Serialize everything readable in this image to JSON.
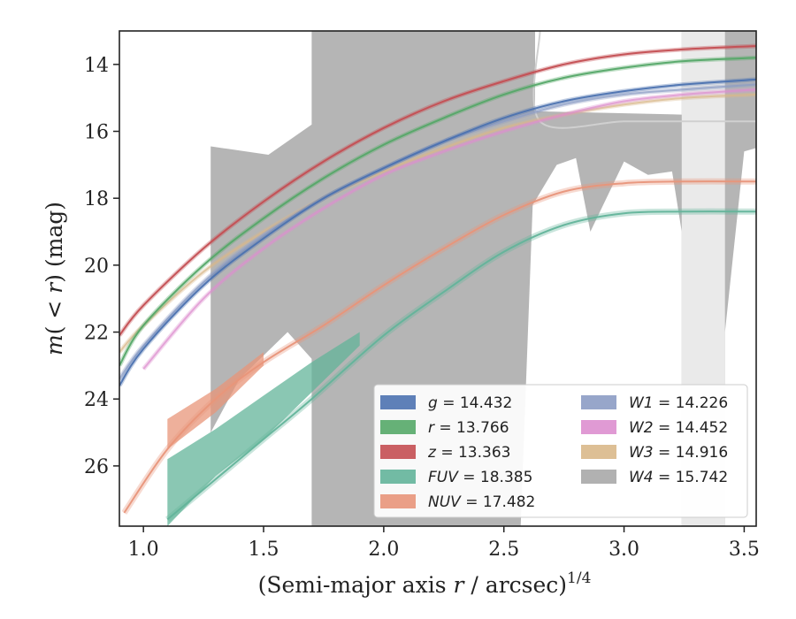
{
  "chart_data": {
    "type": "line",
    "title": "",
    "xlabel": "(Semi-major axis r / arcsec)",
    "xlabel_parts": {
      "pre": "(Semi-major axis ",
      "var": "r",
      "post": " / arcsec)",
      "sup": "1/4"
    },
    "ylabel": "m(< r) (mag)",
    "ylabel_parts": {
      "m": "m",
      "open": "( < ",
      "r": "r",
      "close": ") (mag)"
    },
    "xlim": [
      0.9,
      3.55
    ],
    "ylim": [
      27.8,
      13.0
    ],
    "y_inverted": true,
    "x_ticks": [
      1.0,
      1.5,
      2.0,
      2.5,
      3.0,
      3.5
    ],
    "x_tick_labels": [
      "1.0",
      "1.5",
      "2.0",
      "2.5",
      "3.0",
      "3.5"
    ],
    "y_ticks": [
      14,
      16,
      18,
      20,
      22,
      24,
      26
    ],
    "y_tick_labels": [
      "14",
      "16",
      "18",
      "20",
      "22",
      "24",
      "26"
    ],
    "grid": false,
    "legend_position": "bottom-right",
    "legend_columns": 2,
    "series": [
      {
        "name": "g",
        "value": "14.432",
        "color": "#4c72b0",
        "x": [
          0.9,
          1.0,
          1.25,
          1.5,
          1.75,
          2.0,
          2.25,
          2.5,
          2.75,
          3.0,
          3.25,
          3.55
        ],
        "y": [
          23.6,
          22.5,
          20.6,
          19.2,
          18.0,
          17.1,
          16.3,
          15.6,
          15.1,
          14.8,
          14.6,
          14.45
        ]
      },
      {
        "name": "r",
        "value": "13.766",
        "color": "#55a868",
        "x": [
          0.9,
          1.0,
          1.25,
          1.5,
          1.75,
          2.0,
          2.25,
          2.5,
          2.75,
          3.0,
          3.25,
          3.55
        ],
        "y": [
          23.0,
          21.8,
          20.0,
          18.6,
          17.4,
          16.4,
          15.6,
          14.9,
          14.4,
          14.1,
          13.9,
          13.8
        ]
      },
      {
        "name": "z",
        "value": "13.363",
        "color": "#c44e52",
        "x": [
          0.9,
          1.0,
          1.25,
          1.5,
          1.75,
          2.0,
          2.25,
          2.5,
          2.75,
          3.0,
          3.25,
          3.55
        ],
        "y": [
          22.1,
          21.2,
          19.5,
          18.1,
          16.9,
          15.9,
          15.1,
          14.5,
          14.0,
          13.7,
          13.55,
          13.45
        ]
      },
      {
        "name": "FUV",
        "value": "18.385",
        "color": "#63b49a",
        "x": [
          1.1,
          1.3,
          1.5,
          1.7,
          2.0,
          2.25,
          2.5,
          2.75,
          3.0,
          3.25,
          3.55
        ],
        "y": [
          27.6,
          26.4,
          25.2,
          24.0,
          22.1,
          20.8,
          19.6,
          18.8,
          18.45,
          18.4,
          18.4
        ]
      },
      {
        "name": "NUV",
        "value": "17.482",
        "color": "#e8957a",
        "x": [
          0.92,
          1.1,
          1.3,
          1.5,
          1.75,
          2.0,
          2.25,
          2.5,
          2.75,
          3.0,
          3.25,
          3.55
        ],
        "y": [
          27.4,
          25.5,
          24.0,
          22.9,
          21.8,
          20.6,
          19.5,
          18.5,
          17.8,
          17.55,
          17.5,
          17.5
        ]
      },
      {
        "name": "W1",
        "value": "14.226",
        "color": "#8c9cc4",
        "x": [
          0.9,
          1.0,
          1.25,
          1.5,
          1.75,
          2.0,
          2.25,
          2.5,
          2.75,
          3.0,
          3.25,
          3.55
        ],
        "y": [
          23.4,
          22.4,
          20.5,
          19.1,
          18.0,
          17.1,
          16.3,
          15.7,
          15.2,
          14.9,
          14.75,
          14.6
        ]
      },
      {
        "name": "W2",
        "value": "14.452",
        "color": "#dd8fcf",
        "x": [
          1.0,
          1.25,
          1.5,
          1.75,
          2.0,
          2.25,
          2.5,
          2.75,
          3.0,
          3.25,
          3.55
        ],
        "y": [
          23.1,
          21.0,
          19.5,
          18.3,
          17.3,
          16.6,
          16.0,
          15.5,
          15.1,
          14.9,
          14.75
        ]
      },
      {
        "name": "W3",
        "value": "14.916",
        "color": "#d9b88a",
        "x": [
          0.9,
          1.0,
          1.25,
          1.5,
          1.75,
          2.0,
          2.25,
          2.5,
          2.75,
          3.0,
          3.25,
          3.55
        ],
        "y": [
          22.6,
          21.8,
          20.2,
          19.0,
          18.0,
          17.2,
          16.5,
          15.9,
          15.5,
          15.2,
          15.0,
          14.9
        ]
      },
      {
        "name": "W4",
        "value": "15.742",
        "color": "#a8a8a8",
        "x": [
          1.3,
          1.3,
          1.5,
          1.55,
          1.7,
          1.7,
          2.0,
          2.25,
          2.5,
          2.65,
          2.65,
          3.0,
          3.25,
          3.55
        ],
        "y": [
          16.4,
          25.0,
          22.5,
          16.7,
          15.8,
          13.0,
          13.0,
          13.0,
          13.0,
          13.0,
          15.7,
          15.7,
          15.7,
          15.7
        ]
      }
    ],
    "w4_band": {
      "upper": {
        "x": [
          1.28,
          1.52,
          1.7,
          1.7,
          2.63,
          2.63,
          3.24,
          3.24,
          3.55
        ],
        "y": [
          16.45,
          16.7,
          15.8,
          13.0,
          13.0,
          15.4,
          15.5,
          13.0,
          13.0
        ]
      },
      "lower": {
        "x": [
          1.28,
          1.4,
          1.6,
          1.7,
          1.7,
          1.72,
          2.57,
          2.62,
          2.72,
          2.8,
          2.86,
          3.0,
          3.1,
          3.2,
          3.24,
          3.24,
          3.42,
          3.42,
          3.5,
          3.55
        ],
        "y": [
          25.0,
          23.4,
          22.0,
          22.8,
          27.8,
          27.8,
          27.8,
          18.2,
          17.0,
          16.8,
          19.0,
          16.9,
          17.3,
          17.2,
          19.0,
          27.8,
          27.8,
          22.0,
          16.6,
          16.5
        ]
      }
    }
  },
  "legend": {
    "left": [
      {
        "label": "g",
        "value": "14.432",
        "color": "#4c72b0"
      },
      {
        "label": "r",
        "value": "13.766",
        "color": "#55a868"
      },
      {
        "label": "z",
        "value": "13.363",
        "color": "#c44e52"
      },
      {
        "label": "FUV",
        "value": "18.385",
        "color": "#63b49a"
      },
      {
        "label": "NUV",
        "value": "17.482",
        "color": "#e8957a"
      }
    ],
    "right": [
      {
        "label": "W1",
        "value": "14.226",
        "color": "#8c9cc4"
      },
      {
        "label": "W2",
        "value": "14.452",
        "color": "#dd8fcf"
      },
      {
        "label": "W3",
        "value": "14.916",
        "color": "#d9b88a"
      },
      {
        "label": "W4",
        "value": "15.742",
        "color": "#a8a8a8"
      }
    ]
  }
}
